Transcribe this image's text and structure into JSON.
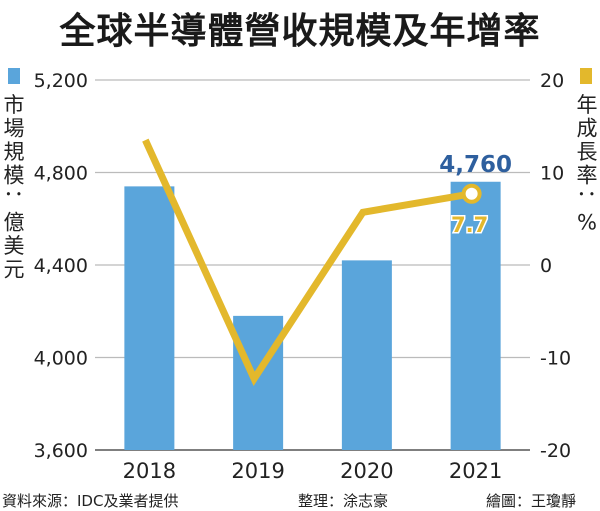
{
  "title": "全球半導體營收規模及年增率",
  "chart_data": {
    "type": "bar+line",
    "categories": [
      "2018",
      "2019",
      "2020",
      "2021"
    ],
    "left_axis": {
      "label": "市場規模：億美元",
      "ylim": [
        3600,
        5200
      ],
      "ticks": [
        "3,600",
        "4,000",
        "4,400",
        "4,800",
        "5,200"
      ],
      "tick_values": [
        3600,
        4000,
        4400,
        4800,
        5200
      ]
    },
    "right_axis": {
      "label": "年成長率：%",
      "ylim": [
        -20,
        20
      ],
      "ticks": [
        "-20",
        "-10",
        "0",
        "10",
        "20"
      ],
      "tick_values": [
        -20,
        -10,
        0,
        10,
        20
      ]
    },
    "series": [
      {
        "type": "bar",
        "axis": "left",
        "values": [
          4740,
          4180,
          4420,
          4760
        ],
        "color": "#5aa5db"
      },
      {
        "type": "line",
        "axis": "right",
        "values": [
          13.5,
          -12.3,
          5.7,
          7.7
        ],
        "color": "#e3b82c"
      }
    ],
    "annotations": [
      {
        "text": "4,760",
        "color": "#2e5f9e"
      },
      {
        "text": "7.7",
        "color": "#e3b82c"
      }
    ],
    "grid": true,
    "legend": "top-left bar swatch, top-right line swatch"
  },
  "footer": {
    "source": "資料來源：IDC及業者提供",
    "editor": "整理：涂志豪",
    "artist": "繪圖：王瓊靜"
  }
}
